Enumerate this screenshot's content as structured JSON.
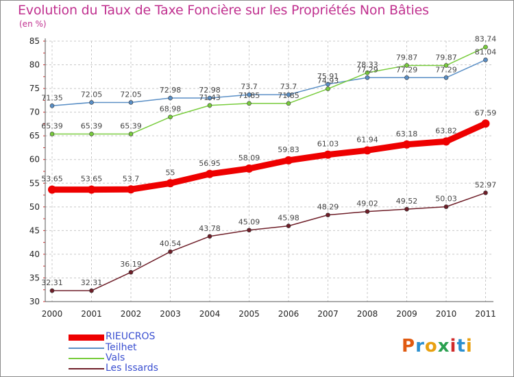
{
  "title": "Evolution du Taux de Taxe Foncière sur les Propriétés Non Bâties",
  "subtitle": "(en %)",
  "brand": "Proxiti",
  "colors": {
    "title": "#c0308f",
    "grid": "#c8c8c8",
    "rieucros": "#ee0000",
    "teilhet": "#5a8fc6",
    "vals": "#78cc3c",
    "les_issards": "#6e1e28",
    "legend_text": "#3a4fd0"
  },
  "chart_data": {
    "type": "line",
    "title": "Evolution du Taux de Taxe Foncière sur les Propriétés Non Bâties",
    "ylabel": "(en %)",
    "xlabel": "",
    "ylim": [
      30,
      85
    ],
    "yticks": [
      30,
      35,
      40,
      45,
      50,
      55,
      60,
      65,
      70,
      75,
      80,
      85
    ],
    "grid": true,
    "x": [
      "2000",
      "2001",
      "2002",
      "2003",
      "2004",
      "2005",
      "2006",
      "2007",
      "2008",
      "2009",
      "2010",
      "2011"
    ],
    "series": [
      {
        "name": "Teilhet",
        "key": "teilhet",
        "values": [
          71.35,
          72.05,
          72.05,
          72.98,
          72.98,
          73.7,
          73.7,
          75.91,
          77.29,
          77.29,
          77.29,
          81.04
        ],
        "labels": [
          "71.35",
          "72.05",
          "72.05",
          "72.98",
          "72.98",
          "73.7",
          "73.7",
          "75.91",
          "77.29",
          "77.29",
          "77.29",
          "81.04"
        ]
      },
      {
        "name": "Vals",
        "key": "vals",
        "values": [
          65.39,
          65.39,
          65.39,
          68.98,
          71.43,
          71.85,
          71.85,
          74.93,
          78.33,
          79.87,
          79.87,
          83.74
        ],
        "labels": [
          "65.39",
          "65.39",
          "65.39",
          "68.98",
          "71.43",
          "71.85",
          "71.85",
          "74.93",
          "78.33",
          "79.87",
          "79.87",
          "83.74"
        ]
      },
      {
        "name": "Les Issards",
        "key": "les_issards",
        "values": [
          32.31,
          32.31,
          36.19,
          40.54,
          43.78,
          45.09,
          45.98,
          48.29,
          49.02,
          49.52,
          50.03,
          52.97
        ],
        "labels": [
          "32.31",
          "32.31",
          "36.19",
          "40.54",
          "43.78",
          "45.09",
          "45.98",
          "48.29",
          "49.02",
          "49.52",
          "50.03",
          "52.97"
        ]
      },
      {
        "name": "RIEUCROS",
        "key": "rieucros",
        "values": [
          53.65,
          53.65,
          53.7,
          55,
          56.95,
          58.09,
          59.83,
          61.03,
          61.94,
          63.18,
          63.82,
          67.59
        ],
        "labels": [
          "53.65",
          "53.65",
          "53.7",
          "55",
          "56.95",
          "58.09",
          "59.83",
          "61.03",
          "61.94",
          "63.18",
          "63.82",
          "67.59"
        ]
      }
    ],
    "legend": {
      "placement": "bottom-left",
      "entries": [
        "RIEUCROS",
        "Teilhet",
        "Vals",
        "Les Issards"
      ]
    }
  }
}
